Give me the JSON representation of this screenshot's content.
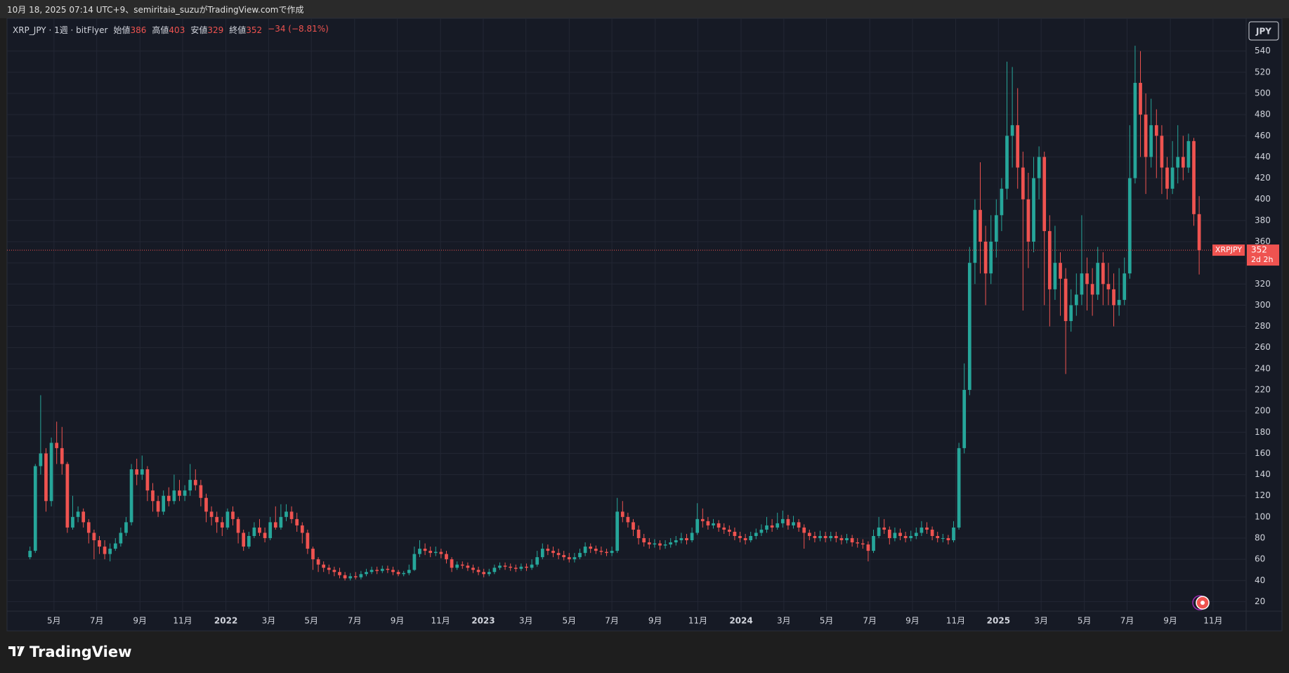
{
  "header": {
    "title": "10月 18, 2025 07:14 UTC+9、semiritaia_suzuがTradingView.comで作成"
  },
  "chart_data": {
    "type": "candlestick",
    "symbol": "XRP_JPY · 1週 · bitFlyer",
    "legend_labels": {
      "open": "始値",
      "high": "高値",
      "low": "安値",
      "close": "終値"
    },
    "change": "−34 (−8.81%)",
    "currency": "JPY",
    "price_label": "XRPJPY",
    "countdown": "2d 2h",
    "up_color": "#26a69a",
    "down_color": "#ef5350",
    "grid": true,
    "open": [
      62,
      68,
      148,
      160,
      115,
      170,
      165,
      150,
      90,
      100,
      105,
      95,
      85,
      78,
      72,
      65,
      70,
      75,
      85,
      95,
      145,
      140,
      145,
      125,
      115,
      105,
      120,
      115,
      125,
      120,
      125,
      135,
      130,
      118,
      105,
      100,
      95,
      90,
      105,
      98,
      85,
      72,
      82,
      90,
      85,
      80,
      95,
      90,
      100,
      105,
      98,
      92,
      85,
      70,
      60,
      55,
      52,
      50,
      48,
      45,
      42,
      44,
      43,
      46,
      48,
      50,
      49,
      51,
      50,
      48,
      46,
      47,
      50,
      65,
      70,
      68,
      66,
      67,
      65,
      60,
      52,
      55,
      54,
      52,
      50,
      48,
      46,
      48,
      52,
      54,
      53,
      52,
      51,
      53,
      52,
      55,
      62,
      70,
      68,
      66,
      64,
      62,
      60,
      62,
      66,
      72,
      70,
      68,
      67,
      66,
      68,
      105,
      100,
      95,
      88,
      80,
      76,
      74,
      75,
      73,
      74,
      76,
      78,
      80,
      78,
      85,
      98,
      96,
      92,
      94,
      90,
      88,
      86,
      82,
      80,
      78,
      82,
      85,
      88,
      92,
      90,
      94,
      98,
      92,
      95,
      90,
      85,
      82,
      80,
      82,
      80,
      82,
      80,
      78,
      80,
      76,
      75,
      74,
      68,
      82,
      90,
      88,
      80,
      85,
      82,
      80,
      82,
      85,
      90,
      88,
      82,
      80,
      80,
      78,
      90,
      165,
      220,
      340,
      390,
      360,
      330,
      360,
      385,
      410,
      460,
      470,
      430,
      400,
      360,
      420,
      440,
      370,
      315,
      340,
      325,
      285,
      300,
      310,
      330,
      320,
      310,
      340,
      320,
      315,
      300,
      305,
      330,
      420,
      510,
      480,
      440,
      470,
      460,
      430,
      410,
      430,
      440,
      430,
      455,
      386
    ],
    "high": [
      72,
      150,
      215,
      165,
      175,
      190,
      185,
      152,
      120,
      110,
      108,
      98,
      88,
      82,
      78,
      75,
      80,
      90,
      100,
      150,
      155,
      158,
      148,
      132,
      120,
      125,
      128,
      140,
      135,
      130,
      150,
      145,
      135,
      122,
      110,
      105,
      100,
      108,
      110,
      100,
      88,
      86,
      95,
      98,
      90,
      100,
      110,
      112,
      112,
      110,
      104,
      95,
      88,
      72,
      62,
      58,
      55,
      53,
      52,
      48,
      47,
      48,
      49,
      51,
      53,
      53,
      54,
      54,
      53,
      50,
      49,
      55,
      72,
      78,
      75,
      72,
      72,
      70,
      68,
      62,
      58,
      58,
      57,
      55,
      53,
      51,
      51,
      55,
      57,
      57,
      56,
      55,
      56,
      56,
      60,
      68,
      75,
      74,
      72,
      70,
      68,
      66,
      66,
      70,
      76,
      75,
      73,
      72,
      70,
      72,
      118,
      115,
      104,
      98,
      92,
      84,
      80,
      79,
      78,
      78,
      80,
      82,
      85,
      84,
      90,
      113,
      108,
      100,
      98,
      97,
      94,
      92,
      90,
      86,
      84,
      86,
      89,
      93,
      100,
      98,
      104,
      106,
      102,
      101,
      98,
      93,
      88,
      86,
      87,
      86,
      86,
      86,
      83,
      84,
      83,
      80,
      79,
      77,
      88,
      100,
      98,
      91,
      90,
      89,
      86,
      87,
      90,
      96,
      95,
      91,
      86,
      84,
      83,
      96,
      170,
      245,
      355,
      400,
      435,
      375,
      385,
      400,
      420,
      530,
      525,
      505,
      445,
      425,
      440,
      450,
      445,
      385,
      375,
      350,
      335,
      315,
      330,
      385,
      345,
      335,
      355,
      350,
      340,
      330,
      335,
      345,
      470,
      545,
      540,
      500,
      495,
      485,
      470,
      440,
      455,
      470,
      460,
      462,
      458,
      403
    ],
    "low": [
      60,
      66,
      140,
      105,
      110,
      150,
      140,
      85,
      88,
      95,
      90,
      75,
      60,
      65,
      60,
      58,
      68,
      72,
      82,
      92,
      130,
      135,
      115,
      105,
      100,
      102,
      110,
      112,
      115,
      115,
      120,
      125,
      110,
      95,
      92,
      85,
      82,
      88,
      92,
      75,
      68,
      70,
      80,
      82,
      76,
      78,
      88,
      88,
      96,
      94,
      86,
      75,
      65,
      50,
      48,
      48,
      46,
      44,
      42,
      40,
      40,
      41,
      41,
      44,
      46,
      46,
      47,
      47,
      45,
      44,
      44,
      45,
      49,
      62,
      64,
      62,
      63,
      61,
      56,
      48,
      50,
      51,
      49,
      47,
      45,
      43,
      44,
      46,
      50,
      50,
      49,
      48,
      49,
      49,
      50,
      53,
      60,
      64,
      62,
      60,
      59,
      57,
      57,
      60,
      63,
      66,
      65,
      64,
      63,
      63,
      66,
      95,
      90,
      82,
      74,
      72,
      70,
      71,
      69,
      70,
      71,
      73,
      75,
      74,
      76,
      83,
      90,
      88,
      89,
      86,
      84,
      82,
      78,
      76,
      74,
      76,
      79,
      82,
      85,
      86,
      88,
      90,
      88,
      89,
      86,
      70,
      78,
      76,
      77,
      76,
      77,
      76,
      74,
      75,
      72,
      71,
      70,
      58,
      66,
      80,
      84,
      74,
      77,
      78,
      76,
      77,
      79,
      82,
      84,
      78,
      76,
      76,
      74,
      76,
      88,
      160,
      215,
      320,
      330,
      300,
      320,
      345,
      370,
      400,
      430,
      410,
      295,
      335,
      350,
      400,
      300,
      280,
      305,
      290,
      235,
      275,
      290,
      300,
      295,
      290,
      305,
      300,
      300,
      280,
      290,
      300,
      325,
      415,
      440,
      405,
      430,
      420,
      405,
      400,
      405,
      415,
      418,
      425,
      375,
      329
    ],
    "close": [
      68,
      148,
      160,
      115,
      170,
      165,
      150,
      90,
      100,
      105,
      95,
      85,
      78,
      72,
      65,
      70,
      75,
      85,
      95,
      145,
      140,
      145,
      125,
      115,
      105,
      120,
      115,
      125,
      120,
      125,
      135,
      130,
      118,
      105,
      100,
      95,
      90,
      105,
      98,
      85,
      72,
      82,
      90,
      85,
      80,
      95,
      90,
      100,
      105,
      98,
      92,
      85,
      70,
      60,
      55,
      52,
      50,
      48,
      45,
      42,
      44,
      43,
      46,
      48,
      50,
      49,
      51,
      50,
      48,
      46,
      47,
      50,
      65,
      70,
      68,
      66,
      67,
      65,
      60,
      52,
      55,
      54,
      52,
      50,
      48,
      46,
      48,
      52,
      54,
      53,
      52,
      51,
      53,
      52,
      55,
      62,
      70,
      68,
      66,
      64,
      62,
      60,
      62,
      66,
      72,
      70,
      68,
      67,
      66,
      68,
      105,
      100,
      95,
      88,
      80,
      76,
      74,
      75,
      73,
      74,
      76,
      78,
      80,
      78,
      85,
      98,
      96,
      92,
      94,
      90,
      88,
      86,
      82,
      80,
      78,
      82,
      85,
      88,
      92,
      90,
      94,
      98,
      92,
      95,
      90,
      85,
      82,
      80,
      82,
      80,
      82,
      80,
      78,
      80,
      76,
      75,
      74,
      68,
      82,
      90,
      88,
      80,
      85,
      82,
      80,
      82,
      85,
      90,
      88,
      82,
      80,
      80,
      78,
      90,
      165,
      220,
      340,
      390,
      360,
      330,
      360,
      385,
      410,
      460,
      470,
      430,
      400,
      360,
      420,
      440,
      370,
      315,
      340,
      325,
      285,
      300,
      310,
      330,
      320,
      310,
      340,
      320,
      315,
      300,
      305,
      330,
      420,
      510,
      480,
      440,
      470,
      460,
      430,
      410,
      430,
      440,
      430,
      455,
      386,
      352
    ],
    "ylim": [
      11,
      571
    ],
    "yticks": [
      20,
      40,
      60,
      80,
      100,
      120,
      140,
      160,
      180,
      200,
      220,
      240,
      260,
      280,
      300,
      320,
      340,
      360,
      380,
      400,
      420,
      440,
      460,
      480,
      500,
      520,
      540
    ],
    "xlim": [
      -4.3,
      227.8
    ],
    "xticks": [
      {
        "value": 4.5,
        "label": "5月"
      },
      {
        "value": 12.5,
        "label": "7月"
      },
      {
        "value": 20.6,
        "label": "9月"
      },
      {
        "value": 28.6,
        "label": "11月"
      },
      {
        "value": 36.7,
        "label": "2022"
      },
      {
        "value": 44.7,
        "label": "3月"
      },
      {
        "value": 52.7,
        "label": "5月"
      },
      {
        "value": 60.8,
        "label": "7月"
      },
      {
        "value": 68.8,
        "label": "9月"
      },
      {
        "value": 76.9,
        "label": "11月"
      },
      {
        "value": 84.9,
        "label": "2023"
      },
      {
        "value": 92.9,
        "label": "3月"
      },
      {
        "value": 101,
        "label": "5月"
      },
      {
        "value": 109,
        "label": "7月"
      },
      {
        "value": 117.1,
        "label": "9月"
      },
      {
        "value": 125.1,
        "label": "11月"
      },
      {
        "value": 133.2,
        "label": "2024"
      },
      {
        "value": 141.2,
        "label": "3月"
      },
      {
        "value": 149.2,
        "label": "5月"
      },
      {
        "value": 157.3,
        "label": "7月"
      },
      {
        "value": 165.3,
        "label": "9月"
      },
      {
        "value": 173.4,
        "label": "11月"
      },
      {
        "value": 181.4,
        "label": "2025"
      },
      {
        "value": 189.4,
        "label": "3月"
      },
      {
        "value": 197.5,
        "label": "5月"
      },
      {
        "value": 205.5,
        "label": "7月"
      },
      {
        "value": 213.6,
        "label": "9月"
      },
      {
        "value": 221.6,
        "label": "11月"
      }
    ]
  },
  "footer": {
    "brand": "TradingView"
  }
}
